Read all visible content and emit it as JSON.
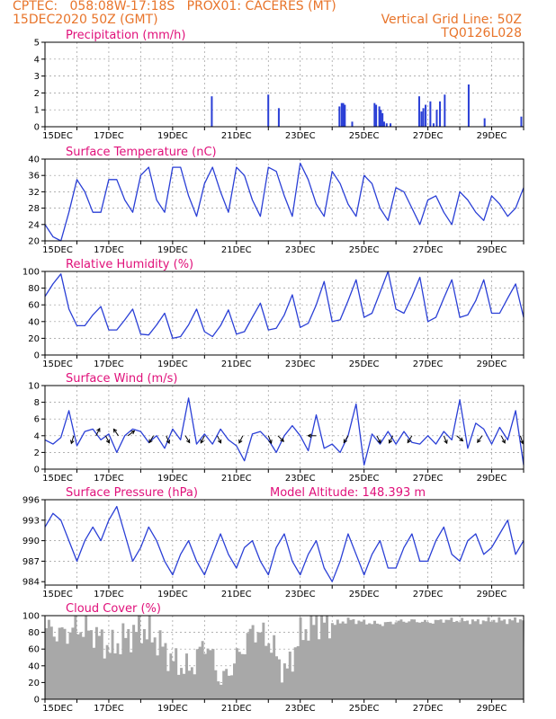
{
  "header": {
    "line1_left": "CPTEC:   058:08W-17:18S   PROX01: CACERES (MT)",
    "line2_left": "15DEC2020 50Z (GMT)",
    "line2_right": "Vertical Grid Line: 50Z",
    "line3_right": "TQ0126L028"
  },
  "colors": {
    "header": "#e8742a",
    "title": "#e0107a",
    "line": "#2a3fd6",
    "cloud": "#a8a8a8",
    "arrow": "#000000"
  },
  "chart_data": [
    {
      "id": "precip",
      "type": "bar",
      "title": "Precipitation (mm/h)",
      "ylim": [
        0,
        5
      ],
      "yticks": [
        0,
        1,
        2,
        3,
        4,
        5
      ],
      "xticks": [
        "15DEC",
        "17DEC",
        "19DEC",
        "21DEC",
        "23DEC",
        "25DEC",
        "27DEC",
        "29DEC"
      ],
      "days": 15,
      "x": [
        5.2,
        6.97,
        7.3,
        9.2,
        9.27,
        9.32,
        9.37,
        9.6,
        10.3,
        10.35,
        10.45,
        10.5,
        10.55,
        10.6,
        10.68,
        10.8,
        11.7,
        11.77,
        11.83,
        11.9,
        12.05,
        12.15,
        12.25,
        12.35,
        12.5,
        13.25,
        13.75,
        14.9
      ],
      "values": [
        1.8,
        1.9,
        1.1,
        1.2,
        1.4,
        1.4,
        1.3,
        0.3,
        1.4,
        1.3,
        1.2,
        1.0,
        0.8,
        0.3,
        0.2,
        0.2,
        1.8,
        0.9,
        1.1,
        1.3,
        1.5,
        0.2,
        1.0,
        1.5,
        1.9,
        2.5,
        0.5,
        0.6
      ]
    },
    {
      "id": "temp",
      "type": "line",
      "title": "Surface Temperature (nC)",
      "ylim": [
        20,
        40
      ],
      "yticks": [
        20,
        24,
        28,
        32,
        36,
        40
      ],
      "xticks": [
        "15DEC",
        "17DEC",
        "19DEC",
        "21DEC",
        "23DEC",
        "25DEC",
        "27DEC",
        "29DEC"
      ],
      "days": 15,
      "x": [
        0,
        0.25,
        0.5,
        0.75,
        1,
        1.25,
        1.5,
        1.75,
        2,
        2.25,
        2.5,
        2.75,
        3,
        3.25,
        3.5,
        3.75,
        4,
        4.25,
        4.5,
        4.75,
        5,
        5.25,
        5.5,
        5.75,
        6,
        6.25,
        6.5,
        6.75,
        7,
        7.25,
        7.5,
        7.75,
        8,
        8.25,
        8.5,
        8.75,
        9,
        9.25,
        9.5,
        9.75,
        10,
        10.25,
        10.5,
        10.75,
        11,
        11.25,
        11.5,
        11.75,
        12,
        12.25,
        12.5,
        12.75,
        13,
        13.25,
        13.5,
        13.75,
        14,
        14.25,
        14.5,
        14.75,
        15
      ],
      "values": [
        24,
        21,
        20,
        27,
        35,
        32,
        27,
        27,
        35,
        35,
        30,
        27,
        36,
        38,
        30,
        27,
        38,
        38,
        31,
        26,
        34,
        38,
        32,
        27,
        38,
        36,
        30,
        26,
        38,
        37,
        31,
        26,
        39,
        35,
        29,
        26,
        37,
        34,
        29,
        26,
        36,
        34,
        28,
        25,
        33,
        32,
        28,
        24,
        30,
        31,
        27,
        24,
        32,
        30,
        27,
        25,
        31,
        29,
        26,
        28,
        33
      ]
    },
    {
      "id": "rh",
      "type": "line",
      "title": "Relative Humidity (%)",
      "ylim": [
        0,
        100
      ],
      "yticks": [
        0,
        20,
        40,
        60,
        80,
        100
      ],
      "xticks": [
        "15DEC",
        "17DEC",
        "19DEC",
        "21DEC",
        "23DEC",
        "25DEC",
        "27DEC",
        "29DEC"
      ],
      "days": 15,
      "x": [
        0,
        0.25,
        0.5,
        0.75,
        1,
        1.25,
        1.5,
        1.75,
        2,
        2.25,
        2.5,
        2.75,
        3,
        3.25,
        3.5,
        3.75,
        4,
        4.25,
        4.5,
        4.75,
        5,
        5.25,
        5.5,
        5.75,
        6,
        6.25,
        6.5,
        6.75,
        7,
        7.25,
        7.5,
        7.75,
        8,
        8.25,
        8.5,
        8.75,
        9,
        9.25,
        9.5,
        9.75,
        10,
        10.25,
        10.5,
        10.75,
        11,
        11.25,
        11.5,
        11.75,
        12,
        12.25,
        12.5,
        12.75,
        13,
        13.25,
        13.5,
        13.75,
        14,
        14.25,
        14.5,
        14.75,
        15
      ],
      "values": [
        70,
        85,
        97,
        55,
        35,
        35,
        48,
        58,
        30,
        30,
        42,
        55,
        25,
        24,
        36,
        50,
        20,
        22,
        36,
        55,
        28,
        22,
        35,
        54,
        25,
        28,
        45,
        62,
        30,
        32,
        48,
        72,
        33,
        38,
        60,
        88,
        40,
        42,
        65,
        90,
        45,
        50,
        75,
        100,
        55,
        50,
        70,
        93,
        40,
        45,
        68,
        90,
        45,
        48,
        65,
        90,
        50,
        50,
        68,
        85,
        45
      ]
    },
    {
      "id": "wind",
      "type": "line",
      "title": "Surface Wind (m/s)",
      "ylim": [
        0,
        10
      ],
      "yticks": [
        0,
        2,
        4,
        6,
        8,
        10
      ],
      "xticks": [
        "15DEC",
        "17DEC",
        "19DEC",
        "21DEC",
        "23DEC",
        "25DEC",
        "27DEC",
        "29DEC"
      ],
      "days": 15,
      "x": [
        0,
        0.25,
        0.5,
        0.75,
        1,
        1.25,
        1.5,
        1.75,
        2,
        2.25,
        2.5,
        2.75,
        3,
        3.25,
        3.5,
        3.75,
        4,
        4.25,
        4.5,
        4.75,
        5,
        5.25,
        5.5,
        5.75,
        6,
        6.25,
        6.5,
        6.75,
        7,
        7.25,
        7.5,
        7.75,
        8,
        8.25,
        8.5,
        8.75,
        9,
        9.25,
        9.5,
        9.75,
        10,
        10.25,
        10.5,
        10.75,
        11,
        11.25,
        11.5,
        11.75,
        12,
        12.25,
        12.5,
        12.75,
        13,
        13.25,
        13.5,
        13.75,
        14,
        14.25,
        14.5,
        14.75,
        15
      ],
      "values": [
        3.5,
        3.0,
        3.8,
        7.0,
        2.8,
        4.5,
        4.8,
        3.5,
        4.2,
        2.0,
        4.0,
        4.8,
        4.5,
        3.2,
        4.0,
        2.5,
        4.8,
        3.5,
        8.5,
        3.0,
        4.2,
        3.0,
        4.8,
        3.5,
        2.8,
        1.0,
        4.2,
        4.5,
        3.5,
        2.0,
        4.0,
        5.2,
        4.0,
        2.2,
        6.5,
        2.5,
        3.0,
        2.0,
        4.0,
        7.8,
        0.5,
        4.2,
        3.0,
        4.5,
        3.0,
        4.5,
        3.2,
        3.0,
        4.0,
        3.0,
        4.5,
        3.5,
        8.3,
        2.5,
        5.5,
        4.8,
        3.0,
        5.0,
        3.5,
        7.0,
        0.5
      ],
      "arrows": [
        {
          "x": 0.9,
          "u": -0.3,
          "v": -1
        },
        {
          "x": 1.6,
          "u": 0.5,
          "v": 1
        },
        {
          "x": 1.9,
          "u": 0.5,
          "v": -1
        },
        {
          "x": 2.3,
          "u": -0.7,
          "v": 1
        },
        {
          "x": 2.6,
          "u": 0.8,
          "v": 0.6
        },
        {
          "x": 3.4,
          "u": -0.6,
          "v": -1
        },
        {
          "x": 3.8,
          "u": 0.4,
          "v": -1
        },
        {
          "x": 4.4,
          "u": 0.6,
          "v": -1
        },
        {
          "x": 5.0,
          "u": -0.5,
          "v": -1
        },
        {
          "x": 5.4,
          "u": 0.5,
          "v": -1
        },
        {
          "x": 6.2,
          "u": -0.5,
          "v": -1
        },
        {
          "x": 7.0,
          "u": 0.4,
          "v": -1
        },
        {
          "x": 7.3,
          "u": 0.6,
          "v": -0.6
        },
        {
          "x": 8.5,
          "u": -1,
          "v": 0
        },
        {
          "x": 9.5,
          "u": -0.6,
          "v": -1
        },
        {
          "x": 10.4,
          "u": 0.5,
          "v": -1
        },
        {
          "x": 10.9,
          "u": -0.5,
          "v": -1
        },
        {
          "x": 11.5,
          "u": -0.6,
          "v": -1
        },
        {
          "x": 12.5,
          "u": 0.4,
          "v": -1
        },
        {
          "x": 12.9,
          "u": 0.6,
          "v": -0.5
        },
        {
          "x": 13.7,
          "u": -0.7,
          "v": -1
        },
        {
          "x": 14.3,
          "u": 0.5,
          "v": -1
        },
        {
          "x": 14.9,
          "u": 0.3,
          "v": -1
        }
      ]
    },
    {
      "id": "pressure",
      "type": "line",
      "title": "Surface Pressure (hPa)",
      "note": "Model Altitude: 148.393 m",
      "ylim": [
        983.5,
        996
      ],
      "yticks": [
        984,
        987,
        990,
        993,
        996
      ],
      "xticks": [
        "15DEC",
        "17DEC",
        "19DEC",
        "21DEC",
        "23DEC",
        "25DEC",
        "27DEC",
        "29DEC"
      ],
      "days": 15,
      "x": [
        0,
        0.25,
        0.5,
        0.75,
        1,
        1.25,
        1.5,
        1.75,
        2,
        2.25,
        2.5,
        2.75,
        3,
        3.25,
        3.5,
        3.75,
        4,
        4.25,
        4.5,
        4.75,
        5,
        5.25,
        5.5,
        5.75,
        6,
        6.25,
        6.5,
        6.75,
        7,
        7.25,
        7.5,
        7.75,
        8,
        8.25,
        8.5,
        8.75,
        9,
        9.25,
        9.5,
        9.75,
        10,
        10.25,
        10.5,
        10.75,
        11,
        11.25,
        11.5,
        11.75,
        12,
        12.25,
        12.5,
        12.75,
        13,
        13.25,
        13.5,
        13.75,
        14,
        14.25,
        14.5,
        14.75,
        15
      ],
      "values": [
        992,
        994,
        993,
        990,
        987,
        990,
        992,
        990,
        993,
        995,
        991,
        987,
        989,
        992,
        990,
        987,
        985,
        988,
        990,
        987,
        985,
        988,
        991,
        988,
        986,
        989,
        990,
        987,
        985,
        989,
        991,
        987,
        985,
        988,
        990,
        986,
        984,
        987,
        991,
        988,
        985,
        988,
        990,
        986,
        986,
        989,
        991,
        987,
        987,
        990,
        992,
        988,
        987,
        990,
        991,
        988,
        989,
        991,
        993,
        988,
        990
      ]
    },
    {
      "id": "cloud",
      "type": "area",
      "title": "Cloud Cover (%)",
      "ylim": [
        0,
        100
      ],
      "yticks": [
        0,
        20,
        40,
        60,
        80,
        100
      ],
      "xticks": [
        "15DEC",
        "17DEC",
        "19DEC",
        "21DEC",
        "23DEC",
        "25DEC",
        "27DEC",
        "29DEC"
      ],
      "days": 15,
      "x": [
        0,
        0.5,
        1,
        1.5,
        2,
        2.5,
        3,
        3.5,
        4,
        4.5,
        5,
        5.5,
        6,
        6.5,
        7,
        7.5,
        8,
        8.5,
        9,
        9.5,
        10,
        10.5,
        11,
        11.5,
        12,
        12.5,
        13,
        13.5,
        14,
        14.5,
        15
      ],
      "values": [
        85,
        78,
        86,
        80,
        60,
        75,
        85,
        70,
        45,
        35,
        70,
        20,
        50,
        85,
        70,
        30,
        80,
        94,
        90,
        95,
        92,
        90,
        93,
        94,
        92,
        95,
        94,
        93,
        95,
        94,
        96
      ]
    }
  ]
}
